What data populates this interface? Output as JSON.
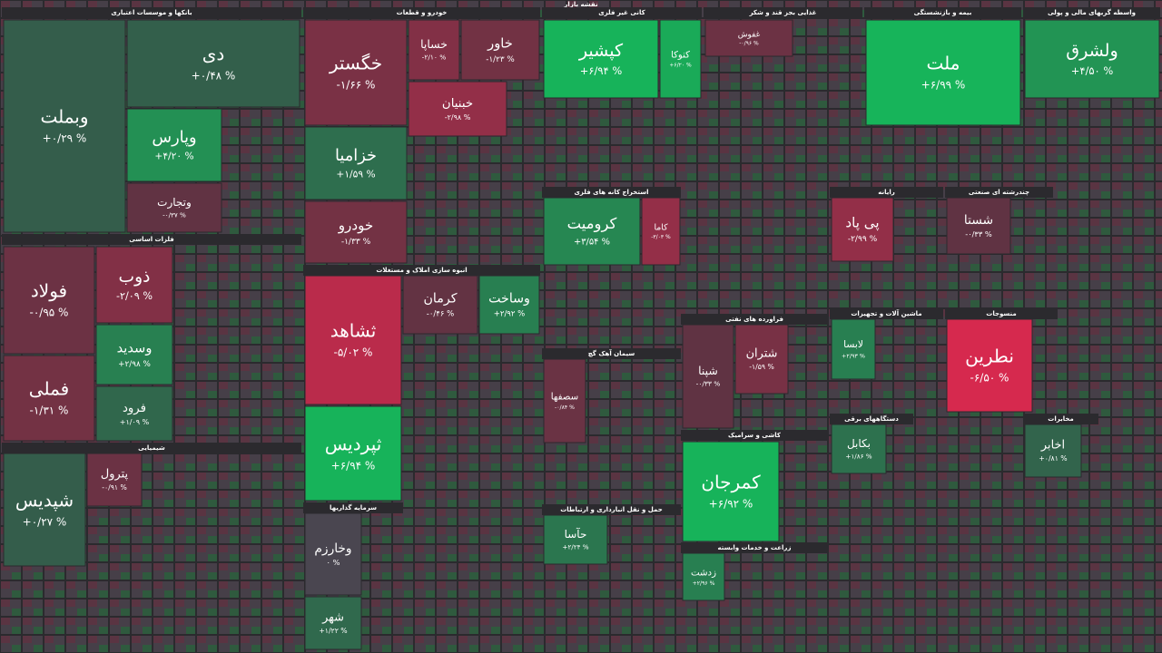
{
  "chart_data": {
    "type": "treemap",
    "title": "نقشه بازار",
    "sectors": [
      {
        "name": "بانکها و موسسات اعتباری",
        "categories": [
          "وبملت",
          "دی",
          "وپارس",
          "وتجارت"
        ],
        "values": [
          0.29,
          0.48,
          4.2,
          -0.37
        ],
        "value_labels": [
          "+۰/۲۹ %",
          "+۰/۴۸ %",
          "+۴/۲۰ %",
          "-۰/۳۷ %"
        ]
      },
      {
        "name": "خودرو و قطعات",
        "categories": [
          "خگستر",
          "خزامیا",
          "خودرو",
          "خساپا",
          "خاور",
          "خبنیان"
        ],
        "values": [
          -1.66,
          1.59,
          -1.33,
          -2.1,
          -1.23,
          -2.98
        ],
        "value_labels": [
          "-۱/۶۶ %",
          "+۱/۵۹ %",
          "-۱/۳۳ %",
          "-۲/۱۰ %",
          "-۱/۲۳ %",
          "-۲/۹۸ %"
        ]
      },
      {
        "name": "کانی غیر فلزی",
        "categories": [
          "کپشیر",
          "کنوکا"
        ],
        "values": [
          6.94,
          6.2
        ],
        "value_labels": [
          "+۶/۹۴ %",
          "+۶/۲۰ %"
        ]
      },
      {
        "name": "غذایی بجز قند و شکر",
        "categories": [
          "غفوش"
        ],
        "values": [
          -0.96
        ],
        "value_labels": [
          "-۰/۹۶ %"
        ]
      },
      {
        "name": "بیمه و بازنشستگی",
        "categories": [
          "ملت"
        ],
        "values": [
          6.99
        ],
        "value_labels": [
          "+۶/۹۹ %"
        ]
      },
      {
        "name": "واسطه گریهای مالی و پولی",
        "categories": [
          "ولشرق"
        ],
        "values": [
          4.5
        ],
        "value_labels": [
          "+۴/۵۰ %"
        ]
      },
      {
        "name": "فلزات اساسی",
        "categories": [
          "فولاد",
          "فملی",
          "ذوب",
          "وسدید",
          "فرود"
        ],
        "values": [
          -0.95,
          -1.31,
          -2.09,
          2.98,
          1.09
        ],
        "value_labels": [
          "-۰/۹۵ %",
          "-۱/۳۱ %",
          "-۲/۰۹ %",
          "+۲/۹۸ %",
          "+۱/۰۹ %"
        ]
      },
      {
        "name": "انبوه سازی املاک و مستغلات",
        "categories": [
          "ثشاهد",
          "ثپردیس",
          "کرمان",
          "وساخت"
        ],
        "values": [
          -5.02,
          6.94,
          -0.46,
          2.92
        ],
        "value_labels": [
          "-۵/۰۲ %",
          "+۶/۹۴ %",
          "-۰/۴۶ %",
          "+۲/۹۲ %"
        ]
      },
      {
        "name": "استخراج کانه های فلزی",
        "categories": [
          "کرومیت",
          "کاما"
        ],
        "values": [
          3.54,
          -3.03
        ],
        "value_labels": [
          "+۳/۵۴ %",
          "-۳/۰۳ %"
        ]
      },
      {
        "name": "شیمیایی",
        "categories": [
          "شپدیس",
          "پترول"
        ],
        "values": [
          0.27,
          -0.91
        ],
        "value_labels": [
          "+۰/۲۷ %",
          "-۰/۹۱ %"
        ]
      },
      {
        "name": "فراورده های نفتی",
        "categories": [
          "شپنا",
          "شتران"
        ],
        "values": [
          -0.33,
          -1.59
        ],
        "value_labels": [
          "-۰/۳۳ %",
          "-۱/۵۹ %"
        ]
      },
      {
        "name": "کاشی و سرامیک",
        "categories": [
          "کمرجان"
        ],
        "values": [
          6.92
        ],
        "value_labels": [
          "+۶/۹۲ %"
        ]
      },
      {
        "name": "رایانه",
        "categories": [
          "پی پاد"
        ],
        "values": [
          -2.99
        ],
        "value_labels": [
          "-۲/۹۹ %"
        ]
      },
      {
        "name": "چندرشته ای صنعتی",
        "categories": [
          "شستا"
        ],
        "values": [
          -0.33
        ],
        "value_labels": [
          "-۰/۳۳ %"
        ]
      },
      {
        "name": "منسوجات",
        "categories": [
          "نطرین"
        ],
        "values": [
          -6.5
        ],
        "value_labels": [
          "-۶/۵۰ %"
        ]
      },
      {
        "name": "سرمایه گذاریها",
        "categories": [
          "وخارزم",
          "شهر"
        ],
        "values": [
          0,
          1.22
        ],
        "value_labels": [
          "۰ %",
          "+۱/۲۲ %"
        ]
      },
      {
        "name": "ماشین آلات و تجهیزات",
        "categories": [
          "لابسا"
        ],
        "values": [
          2.93
        ],
        "value_labels": [
          "+۲/۹۳ %"
        ]
      },
      {
        "name": "دستگاههای برقی",
        "categories": [
          "بکابل"
        ],
        "values": [
          1.86
        ],
        "value_labels": [
          "+۱/۸۶ %"
        ]
      },
      {
        "name": "مخابرات",
        "categories": [
          "اخابر"
        ],
        "values": [
          0.81
        ],
        "value_labels": [
          "+۰/۸۱ %"
        ]
      },
      {
        "name": "سیمان آهک گچ",
        "categories": [
          "سصفها"
        ],
        "values": [
          -0.84
        ],
        "value_labels": [
          "-۰/۸۴ %"
        ]
      },
      {
        "name": "حمل و نقل انبارداری و ارتباطات",
        "categories": [
          "حآسا"
        ],
        "values": [
          2.24
        ],
        "value_labels": [
          "+۲/۲۴ %"
        ]
      },
      {
        "name": "زراعت و خدمات وابسته",
        "categories": [
          "زدشت"
        ],
        "values": [
          2.96
        ],
        "value_labels": [
          "+۲/۹۶ %"
        ]
      }
    ]
  }
}
